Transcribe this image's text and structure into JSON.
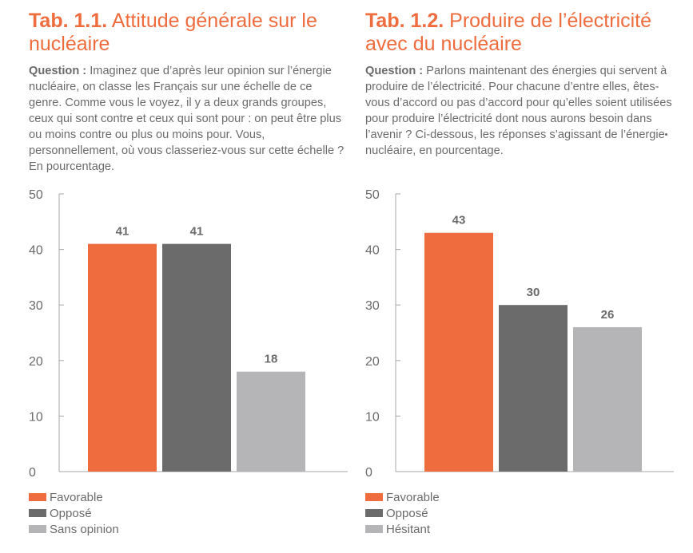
{
  "panels": [
    {
      "tab_no": "Tab. 1.1.",
      "title": "Attitude générale sur le nucléaire",
      "question_label": "Question :",
      "question_text": "Imaginez que d’après leur opinion sur l’énergie nucléaire, on classe les Français sur une échelle de ce genre. Comme vous le voyez, il y a deux grands groupes, ceux qui sont contre et ceux qui sont pour : on peut être plus ou moins contre ou plus ou moins pour. Vous, personnellement, où vous classeriez-vous sur cette échelle ?  En pourcentage."
    },
    {
      "tab_no": "Tab. 1.2.",
      "title": "Produire de l’électricité avec du nucléaire",
      "question_label": "Question :",
      "question_text": "Parlons maintenant des énergies qui servent à produire de l’électricité. Pour chacune d’entre elles, êtes-vous d’accord ou pas d’accord pour qu’elles soient utilisées pour produire l’électricité dont nous aurons besoin dans l’avenir ? Ci-dessous, les réponses s’agissant de l’énergie nucléaire, en pourcentage."
    }
  ],
  "chart_data": [
    {
      "type": "bar",
      "title": "Attitude générale sur le nucléaire",
      "categories": [
        "Favorable",
        "Opposé",
        "Sans opinion"
      ],
      "values": [
        41,
        41,
        18
      ],
      "colors": [
        "#ef6c3e",
        "#6b6b6b",
        "#b5b5b7"
      ],
      "ylim": [
        0,
        50
      ],
      "yticks": [
        0,
        10,
        20,
        30,
        40,
        50
      ],
      "grid": false,
      "data_labels": true,
      "legend_position": "bottom-left"
    },
    {
      "type": "bar",
      "title": "Produire de l’électricité avec du nucléaire",
      "categories": [
        "Favorable",
        "Opposé",
        "Hésitant"
      ],
      "values": [
        43,
        30,
        26
      ],
      "colors": [
        "#ef6c3e",
        "#6b6b6b",
        "#b5b5b7"
      ],
      "ylim": [
        0,
        50
      ],
      "yticks": [
        0,
        10,
        20,
        30,
        40,
        50
      ],
      "grid": false,
      "data_labels": true,
      "legend_position": "bottom-left"
    }
  ]
}
